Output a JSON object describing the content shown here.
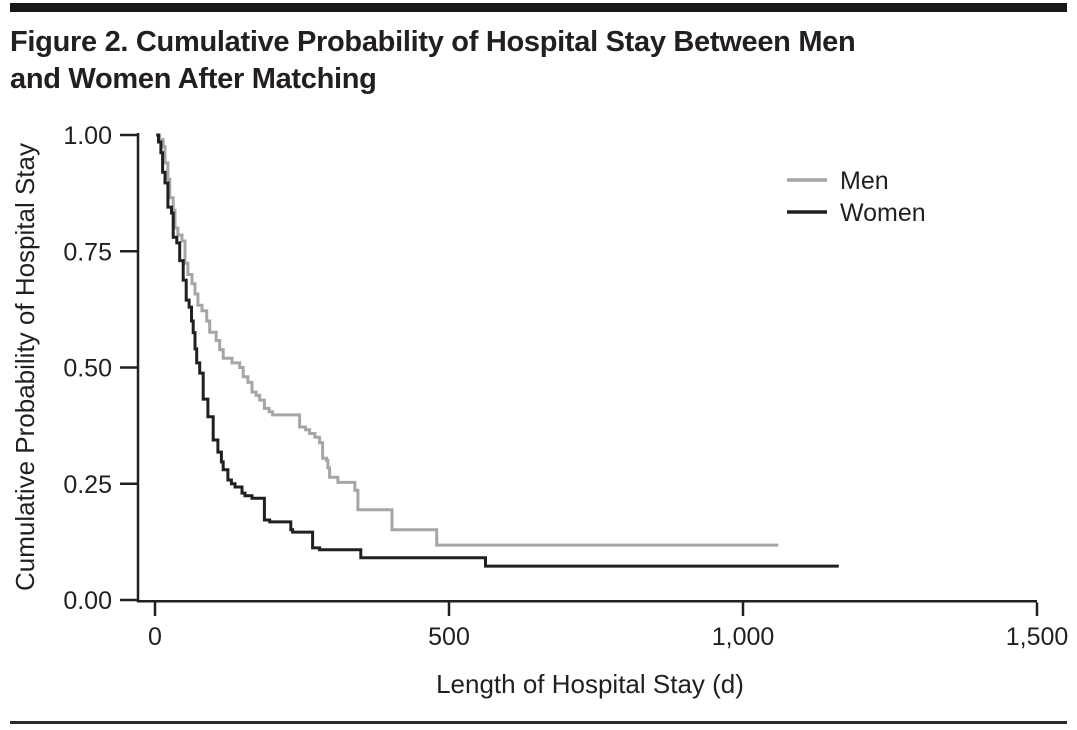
{
  "figure": {
    "title_line1": "Figure 2. Cumulative Probability of Hospital Stay Between Men",
    "title_line2": "and Women After Matching"
  },
  "colors": {
    "text": "#231f20",
    "axis": "#231f20",
    "top_bar": "#1a1718",
    "men_line": "#a7a5a6",
    "women_line": "#231f20",
    "background": "#ffffff"
  },
  "chart_data": {
    "type": "line",
    "subtype": "kaplan-meier-step",
    "title": "Figure 2. Cumulative Probability of Hospital Stay Between Men and Women After Matching",
    "xlabel": "Length of Hospital Stay (d)",
    "ylabel": "Cumulative Probability of Hospital Stay",
    "xlim": [
      0,
      1500
    ],
    "ylim": [
      0,
      1
    ],
    "grid": false,
    "legend_position": "inside-upper-right",
    "x_ticks": {
      "values": [
        0,
        500,
        1000,
        1500
      ],
      "labels": [
        "0",
        "500",
        "1,000",
        "1,500"
      ]
    },
    "y_ticks": {
      "values": [
        1.0,
        0.75,
        0.5,
        0.25,
        0.0
      ],
      "labels": [
        "1.00",
        "0.75",
        "0.50",
        "0.25",
        "0.00"
      ]
    },
    "series": [
      {
        "name": "Men",
        "color": "#a7a5a6",
        "points": [
          [
            3,
            1.0
          ],
          [
            8,
            0.99
          ],
          [
            14,
            0.975
          ],
          [
            17,
            0.94
          ],
          [
            22,
            0.905
          ],
          [
            25,
            0.865
          ],
          [
            31,
            0.838
          ],
          [
            34,
            0.8
          ],
          [
            39,
            0.785
          ],
          [
            46,
            0.772
          ],
          [
            51,
            0.724
          ],
          [
            56,
            0.7
          ],
          [
            63,
            0.68
          ],
          [
            68,
            0.658
          ],
          [
            73,
            0.634
          ],
          [
            80,
            0.622
          ],
          [
            88,
            0.6
          ],
          [
            93,
            0.576
          ],
          [
            104,
            0.558
          ],
          [
            110,
            0.538
          ],
          [
            116,
            0.52
          ],
          [
            131,
            0.51
          ],
          [
            144,
            0.5
          ],
          [
            150,
            0.48
          ],
          [
            158,
            0.468
          ],
          [
            165,
            0.447
          ],
          [
            172,
            0.44
          ],
          [
            178,
            0.43
          ],
          [
            186,
            0.412
          ],
          [
            194,
            0.405
          ],
          [
            200,
            0.398
          ],
          [
            246,
            0.372
          ],
          [
            256,
            0.366
          ],
          [
            263,
            0.358
          ],
          [
            272,
            0.35
          ],
          [
            280,
            0.338
          ],
          [
            285,
            0.305
          ],
          [
            292,
            0.3
          ],
          [
            294,
            0.284
          ],
          [
            297,
            0.264
          ],
          [
            311,
            0.253
          ],
          [
            340,
            0.236
          ],
          [
            345,
            0.194
          ],
          [
            403,
            0.151
          ],
          [
            479,
            0.118
          ],
          [
            1060,
            0.118
          ]
        ]
      },
      {
        "name": "Women",
        "color": "#231f20",
        "points": [
          [
            2,
            1.0
          ],
          [
            6,
            0.985
          ],
          [
            10,
            0.962
          ],
          [
            13,
            0.92
          ],
          [
            17,
            0.897
          ],
          [
            22,
            0.845
          ],
          [
            28,
            0.832
          ],
          [
            31,
            0.78
          ],
          [
            37,
            0.768
          ],
          [
            42,
            0.73
          ],
          [
            48,
            0.688
          ],
          [
            53,
            0.645
          ],
          [
            58,
            0.63
          ],
          [
            62,
            0.6
          ],
          [
            65,
            0.575
          ],
          [
            68,
            0.54
          ],
          [
            71,
            0.51
          ],
          [
            76,
            0.488
          ],
          [
            82,
            0.432
          ],
          [
            90,
            0.394
          ],
          [
            99,
            0.344
          ],
          [
            107,
            0.318
          ],
          [
            113,
            0.297
          ],
          [
            116,
            0.28
          ],
          [
            124,
            0.258
          ],
          [
            130,
            0.25
          ],
          [
            136,
            0.243
          ],
          [
            148,
            0.23
          ],
          [
            153,
            0.224
          ],
          [
            165,
            0.219
          ],
          [
            186,
            0.172
          ],
          [
            195,
            0.168
          ],
          [
            231,
            0.151
          ],
          [
            234,
            0.146
          ],
          [
            268,
            0.112
          ],
          [
            280,
            0.108
          ],
          [
            350,
            0.091
          ],
          [
            562,
            0.073
          ],
          [
            1163,
            0.073
          ]
        ]
      }
    ]
  }
}
